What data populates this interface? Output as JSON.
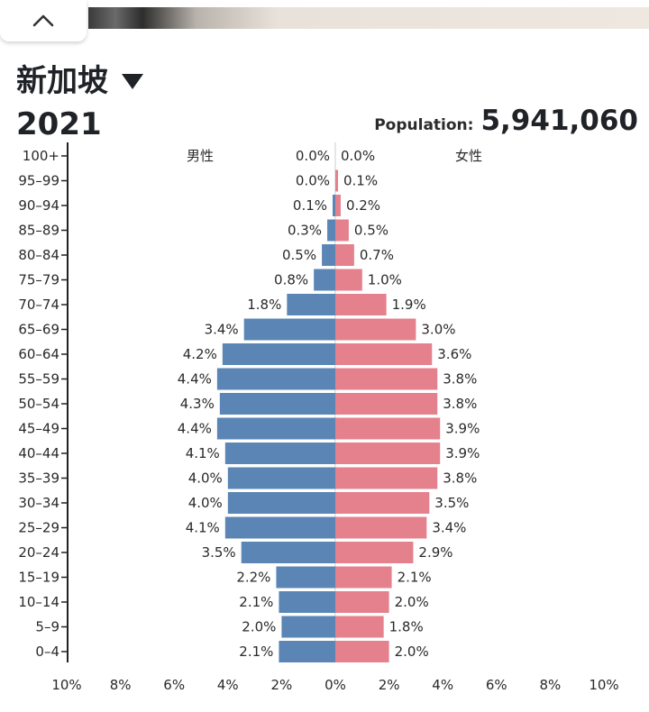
{
  "header": {
    "country": "新加坡",
    "year": "2021",
    "population_label": "Population:",
    "population_value": "5,941,060"
  },
  "icons": {
    "collapse": "chevron-up-icon",
    "country_dropdown": "caret-down-icon"
  },
  "colors": {
    "male": "#5a85b5",
    "female": "#e5808d",
    "axis": "#222222",
    "center_line": "#cccccc"
  },
  "chart_data": {
    "type": "bar",
    "orientation": "horizontal-pyramid",
    "xlim": [
      -10,
      10
    ],
    "x_ticks": [
      "10%",
      "8%",
      "6%",
      "4%",
      "2%",
      "0%",
      "2%",
      "4%",
      "6%",
      "8%",
      "10%"
    ],
    "categories": [
      "100+",
      "95–99",
      "90–94",
      "85–89",
      "80–84",
      "75–79",
      "70–74",
      "65–69",
      "60–64",
      "55–59",
      "50–54",
      "45–49",
      "40–44",
      "35–39",
      "30–34",
      "25–29",
      "20–24",
      "15–19",
      "10–14",
      "5–9",
      "0–4"
    ],
    "series": [
      {
        "name": "男性",
        "side": "left",
        "values": [
          0.0,
          0.0,
          0.1,
          0.3,
          0.5,
          0.8,
          1.8,
          3.4,
          4.2,
          4.4,
          4.3,
          4.4,
          4.1,
          4.0,
          4.0,
          4.1,
          3.5,
          2.2,
          2.1,
          2.0,
          2.1
        ],
        "labels": [
          "0.0%",
          "0.0%",
          "0.1%",
          "0.3%",
          "0.5%",
          "0.8%",
          "1.8%",
          "3.4%",
          "4.2%",
          "4.4%",
          "4.3%",
          "4.4%",
          "4.1%",
          "4.0%",
          "4.0%",
          "4.1%",
          "3.5%",
          "2.2%",
          "2.1%",
          "2.0%",
          "2.1%"
        ]
      },
      {
        "name": "女性",
        "side": "right",
        "values": [
          0.0,
          0.1,
          0.2,
          0.5,
          0.7,
          1.0,
          1.9,
          3.0,
          3.6,
          3.8,
          3.8,
          3.9,
          3.9,
          3.8,
          3.5,
          3.4,
          2.9,
          2.1,
          2.0,
          1.8,
          2.0
        ],
        "labels": [
          "0.0%",
          "0.1%",
          "0.2%",
          "0.5%",
          "0.7%",
          "1.0%",
          "1.9%",
          "3.0%",
          "3.6%",
          "3.8%",
          "3.8%",
          "3.9%",
          "3.9%",
          "3.8%",
          "3.5%",
          "3.4%",
          "2.9%",
          "2.1%",
          "2.0%",
          "1.8%",
          "2.0%"
        ]
      }
    ]
  }
}
